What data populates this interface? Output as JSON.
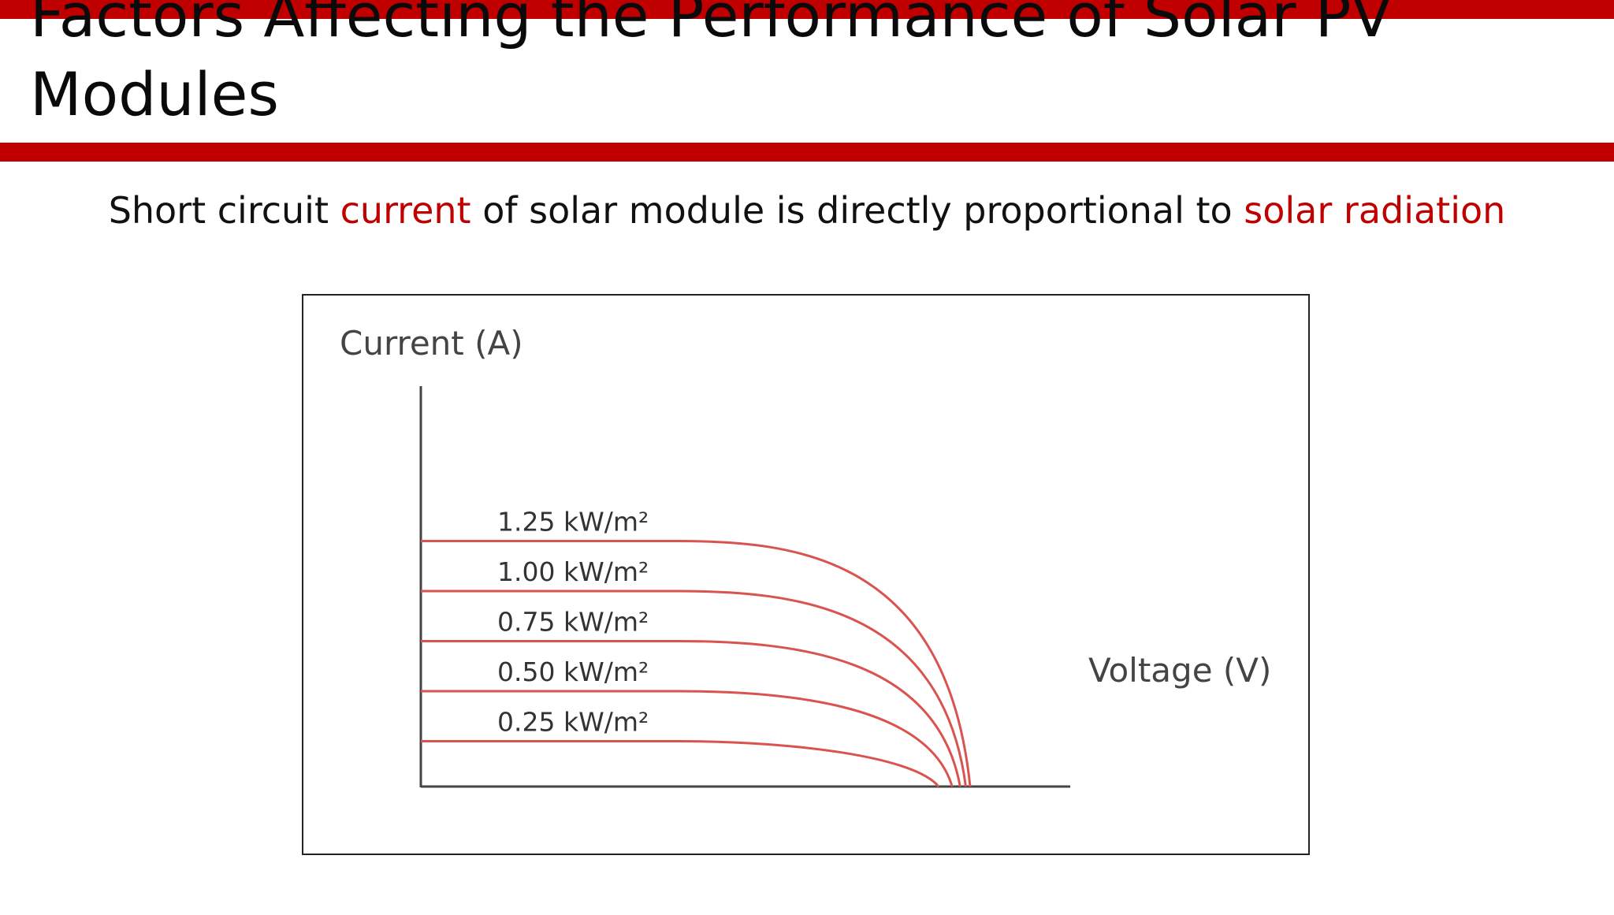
{
  "slide": {
    "title": "Factors Affecting the Performance of Solar PV Modules",
    "subtitle": {
      "part1": "Short circuit ",
      "highlight1": "current",
      "part2": " of solar module is directly proportional to ",
      "highlight2": "solar radiation"
    },
    "colors": {
      "accent": "#c00000",
      "curve": "#d9534f",
      "axis": "#444444"
    }
  },
  "chart_data": {
    "type": "line",
    "title": "",
    "ylabel": "Current (A)",
    "xlabel": "Voltage (V)",
    "series": [
      {
        "name": "1.25 kW/m²",
        "irradiance": 1.25
      },
      {
        "name": "1.00 kW/m²",
        "irradiance": 1.0
      },
      {
        "name": "0.75 kW/m²",
        "irradiance": 0.75
      },
      {
        "name": "0.50 kW/m²",
        "irradiance": 0.5
      },
      {
        "name": "0.25 kW/m²",
        "irradiance": 0.25
      }
    ],
    "grid": false,
    "legend": "inline labels above each curve"
  }
}
